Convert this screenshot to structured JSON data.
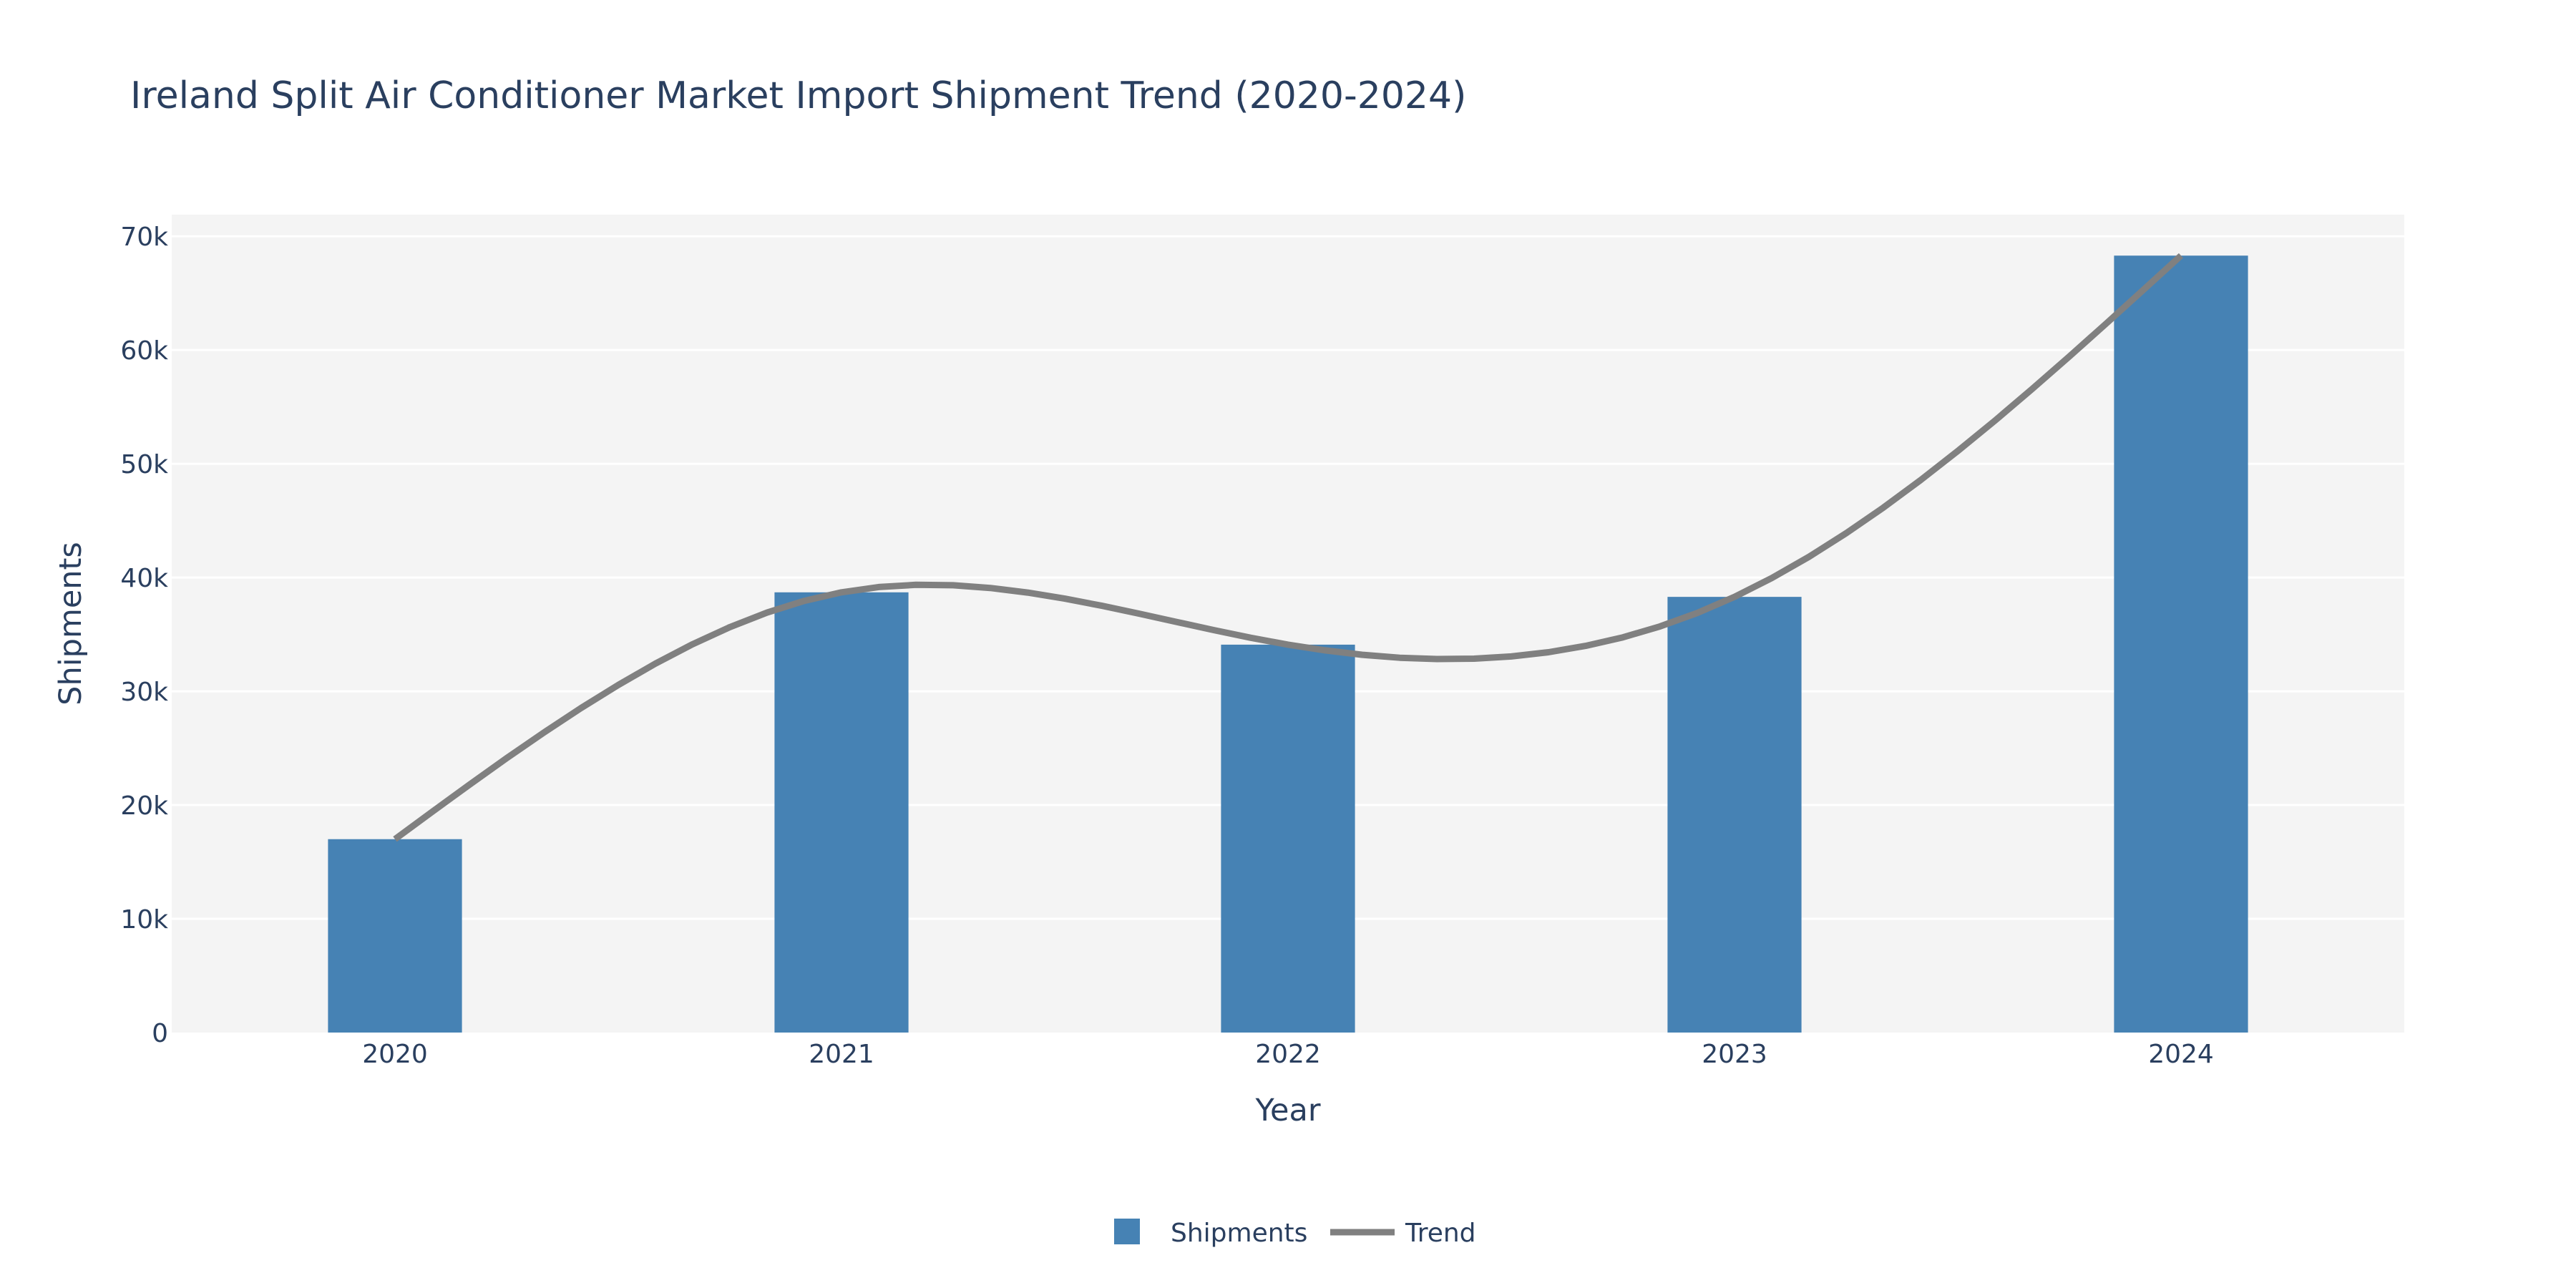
{
  "chart_data": {
    "type": "bar",
    "title": "Ireland Split Air Conditioner Market Import Shipment Trend (2020-2024)",
    "xlabel": "Year",
    "ylabel": "Shipments",
    "categories": [
      "2020",
      "2021",
      "2022",
      "2023",
      "2024"
    ],
    "series": [
      {
        "name": "Shipments",
        "type": "bar",
        "color": "#4682b4",
        "values": [
          17000,
          38700,
          34100,
          38300,
          68300
        ]
      },
      {
        "name": "Trend",
        "type": "line",
        "shape": "spline",
        "color": "#808080",
        "values": [
          17000,
          38700,
          34100,
          38300,
          68300
        ]
      }
    ],
    "ylim": [
      0,
      71900
    ],
    "yticks": [
      0,
      10000,
      20000,
      30000,
      40000,
      50000,
      60000,
      70000
    ],
    "ytick_labels": [
      "0",
      "10k",
      "20k",
      "30k",
      "40k",
      "50k",
      "60k",
      "70k"
    ],
    "grid": true,
    "legend": {
      "placement": "bottom-center",
      "orientation": "horizontal",
      "entries": [
        "Shipments",
        "Trend"
      ]
    },
    "colors": {
      "plot_background": "#f4f4f4",
      "gridline": "#ffffff",
      "text": "#2a3f5f"
    }
  }
}
